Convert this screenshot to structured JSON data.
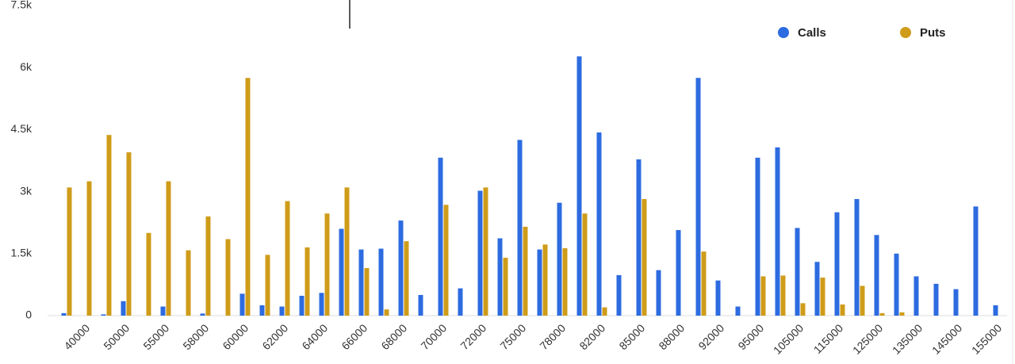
{
  "chart_data": {
    "type": "bar",
    "categories": [
      null,
      "40000",
      null,
      "50000",
      null,
      "55000",
      null,
      "58000",
      null,
      "60000",
      null,
      "62000",
      null,
      "64000",
      null,
      "66000",
      null,
      "68000",
      null,
      "70000",
      null,
      "72000",
      null,
      "75000",
      null,
      "78000",
      null,
      "82000",
      null,
      "85000",
      null,
      "88000",
      null,
      "92000",
      null,
      "95000",
      null,
      "105000",
      null,
      "115000",
      null,
      "125000",
      null,
      "135000",
      null,
      "145000",
      null,
      "155000"
    ],
    "series": [
      {
        "name": "Calls",
        "color": "#2d6be0",
        "values": [
          60,
          0,
          30,
          350,
          0,
          220,
          0,
          50,
          0,
          530,
          250,
          220,
          480,
          550,
          2100,
          1600,
          1620,
          2300,
          500,
          3820,
          660,
          3020,
          1870,
          4250,
          1600,
          2730,
          6270,
          4430,
          980,
          3780,
          1100,
          2070,
          5750,
          850,
          220,
          3820,
          4070,
          2120,
          1300,
          2500,
          2820,
          1950,
          1500,
          950,
          770,
          640,
          2640,
          250
        ]
      },
      {
        "name": "Puts",
        "color": "#cf9c1a",
        "values": [
          3100,
          3250,
          4370,
          3950,
          2000,
          3250,
          1580,
          2400,
          1850,
          5750,
          1470,
          2770,
          1650,
          2470,
          3100,
          1150,
          150,
          1800,
          0,
          2680,
          0,
          3100,
          1400,
          2150,
          1720,
          1630,
          2470,
          200,
          0,
          2820,
          0,
          0,
          1550,
          0,
          0,
          950,
          970,
          300,
          920,
          270,
          720,
          60,
          80,
          0,
          0,
          0,
          0,
          0
        ]
      }
    ],
    "ylim": [
      0,
      7500
    ],
    "yticks": [
      0,
      {
        "value": 1500,
        "label": "1.5k"
      },
      {
        "value": 3000,
        "label": "3k"
      },
      {
        "value": 4500,
        "label": "4.5k"
      },
      {
        "value": 6000,
        "label": "6k"
      },
      {
        "value": 7500,
        "label": "7.5k"
      }
    ],
    "grid": false,
    "legend": "top-right"
  }
}
